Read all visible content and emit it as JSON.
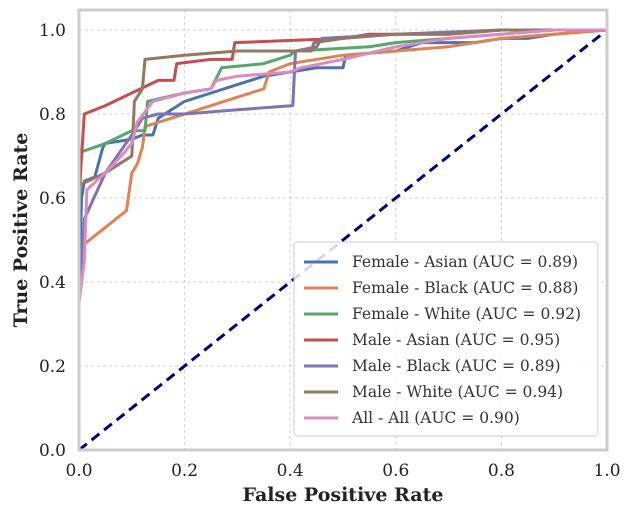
{
  "chart_data": {
    "type": "line",
    "xlabel": "False Positive Rate",
    "ylabel": "True Positive Rate",
    "xlim": [
      0.0,
      1.0
    ],
    "ylim": [
      0.0,
      1.0
    ],
    "xticks": [
      "0.0",
      "0.2",
      "0.4",
      "0.6",
      "0.8",
      "1.0"
    ],
    "yticks": [
      "0.0",
      "0.2",
      "0.4",
      "0.6",
      "0.8",
      "1.0"
    ],
    "grid": true,
    "legend_position": "lower-right",
    "series": [
      {
        "name": "Female - Asian (AUC = 0.89)",
        "color": "#4c72b0",
        "points": [
          [
            0,
            0.4
          ],
          [
            0.005,
            0.6
          ],
          [
            0.01,
            0.64
          ],
          [
            0.03,
            0.65
          ],
          [
            0.045,
            0.72
          ],
          [
            0.05,
            0.73
          ],
          [
            0.1,
            0.74
          ],
          [
            0.12,
            0.75
          ],
          [
            0.14,
            0.75
          ],
          [
            0.15,
            0.79
          ],
          [
            0.2,
            0.83
          ],
          [
            0.25,
            0.85
          ],
          [
            0.3,
            0.87
          ],
          [
            0.35,
            0.89
          ],
          [
            0.4,
            0.9
          ],
          [
            0.45,
            0.91
          ],
          [
            0.5,
            0.91
          ],
          [
            0.505,
            0.94
          ],
          [
            0.6,
            0.95
          ],
          [
            0.65,
            0.97
          ],
          [
            0.75,
            0.97
          ],
          [
            0.8,
            0.98
          ],
          [
            0.85,
            0.98
          ],
          [
            0.9,
            0.99
          ],
          [
            1.0,
            1.0
          ]
        ]
      },
      {
        "name": "Female - Black (AUC = 0.88)",
        "color": "#dd8452",
        "points": [
          [
            0,
            0.39
          ],
          [
            0.01,
            0.49
          ],
          [
            0.03,
            0.51
          ],
          [
            0.06,
            0.54
          ],
          [
            0.09,
            0.57
          ],
          [
            0.1,
            0.66
          ],
          [
            0.11,
            0.68
          ],
          [
            0.12,
            0.72
          ],
          [
            0.125,
            0.77
          ],
          [
            0.2,
            0.8
          ],
          [
            0.3,
            0.84
          ],
          [
            0.35,
            0.86
          ],
          [
            0.36,
            0.9
          ],
          [
            0.4,
            0.92
          ],
          [
            0.5,
            0.94
          ],
          [
            0.6,
            0.95
          ],
          [
            0.7,
            0.96
          ],
          [
            0.8,
            0.98
          ],
          [
            0.9,
            0.99
          ],
          [
            1.0,
            1.0
          ]
        ]
      },
      {
        "name": "Female - White (AUC = 0.92)",
        "color": "#55a868",
        "points": [
          [
            0,
            0.57
          ],
          [
            0.005,
            0.71
          ],
          [
            0.05,
            0.73
          ],
          [
            0.1,
            0.76
          ],
          [
            0.125,
            0.76
          ],
          [
            0.13,
            0.83
          ],
          [
            0.2,
            0.85
          ],
          [
            0.25,
            0.86
          ],
          [
            0.27,
            0.91
          ],
          [
            0.35,
            0.92
          ],
          [
            0.4,
            0.94
          ],
          [
            0.41,
            0.95
          ],
          [
            0.55,
            0.96
          ],
          [
            0.6,
            0.97
          ],
          [
            0.7,
            0.98
          ],
          [
            0.8,
            0.99
          ],
          [
            0.9,
            1.0
          ],
          [
            1.0,
            1.0
          ]
        ]
      },
      {
        "name": "Male - Asian (AUC = 0.95)",
        "color": "#c44e52",
        "points": [
          [
            0,
            0.62
          ],
          [
            0.005,
            0.7
          ],
          [
            0.01,
            0.8
          ],
          [
            0.05,
            0.82
          ],
          [
            0.1,
            0.85
          ],
          [
            0.15,
            0.88
          ],
          [
            0.18,
            0.88
          ],
          [
            0.185,
            0.92
          ],
          [
            0.25,
            0.93
          ],
          [
            0.29,
            0.93
          ],
          [
            0.295,
            0.97
          ],
          [
            0.5,
            0.98
          ],
          [
            0.55,
            0.99
          ],
          [
            0.7,
            0.99
          ],
          [
            0.8,
            1.0
          ],
          [
            1.0,
            1.0
          ]
        ]
      },
      {
        "name": "Male - Black (AUC = 0.89)",
        "color": "#8172b2",
        "points": [
          [
            0,
            0.36
          ],
          [
            0.01,
            0.55
          ],
          [
            0.05,
            0.66
          ],
          [
            0.1,
            0.75
          ],
          [
            0.12,
            0.79
          ],
          [
            0.15,
            0.8
          ],
          [
            0.2,
            0.8
          ],
          [
            0.3,
            0.81
          ],
          [
            0.405,
            0.82
          ],
          [
            0.41,
            0.95
          ],
          [
            0.45,
            0.96
          ],
          [
            0.46,
            0.98
          ],
          [
            0.6,
            0.99
          ],
          [
            0.8,
            1.0
          ],
          [
            1.0,
            1.0
          ]
        ]
      },
      {
        "name": "Male - White (AUC = 0.94)",
        "color": "#937860",
        "points": [
          [
            0,
            0.63
          ],
          [
            0.05,
            0.66
          ],
          [
            0.1,
            0.7
          ],
          [
            0.105,
            0.83
          ],
          [
            0.12,
            0.86
          ],
          [
            0.125,
            0.93
          ],
          [
            0.2,
            0.94
          ],
          [
            0.3,
            0.95
          ],
          [
            0.44,
            0.95
          ],
          [
            0.445,
            0.97
          ],
          [
            0.5,
            0.98
          ],
          [
            0.6,
            0.99
          ],
          [
            0.7,
            0.99
          ],
          [
            0.8,
            1.0
          ],
          [
            1.0,
            1.0
          ]
        ]
      },
      {
        "name": "All - All (AUC = 0.90)",
        "color": "#da8bc3",
        "points": [
          [
            0,
            0.35
          ],
          [
            0.01,
            0.45
          ],
          [
            0.015,
            0.62
          ],
          [
            0.05,
            0.66
          ],
          [
            0.08,
            0.7
          ],
          [
            0.1,
            0.73
          ],
          [
            0.11,
            0.78
          ],
          [
            0.14,
            0.83
          ],
          [
            0.2,
            0.85
          ],
          [
            0.25,
            0.86
          ],
          [
            0.26,
            0.88
          ],
          [
            0.3,
            0.89
          ],
          [
            0.4,
            0.9
          ],
          [
            0.42,
            0.91
          ],
          [
            0.5,
            0.93
          ],
          [
            0.6,
            0.96
          ],
          [
            0.7,
            0.98
          ],
          [
            0.8,
            0.99
          ],
          [
            0.9,
            1.0
          ],
          [
            1.0,
            1.0
          ]
        ]
      }
    ],
    "reference_line": {
      "color": "#000080",
      "style": "dashed",
      "points": [
        [
          0,
          0
        ],
        [
          1,
          1
        ]
      ]
    }
  }
}
